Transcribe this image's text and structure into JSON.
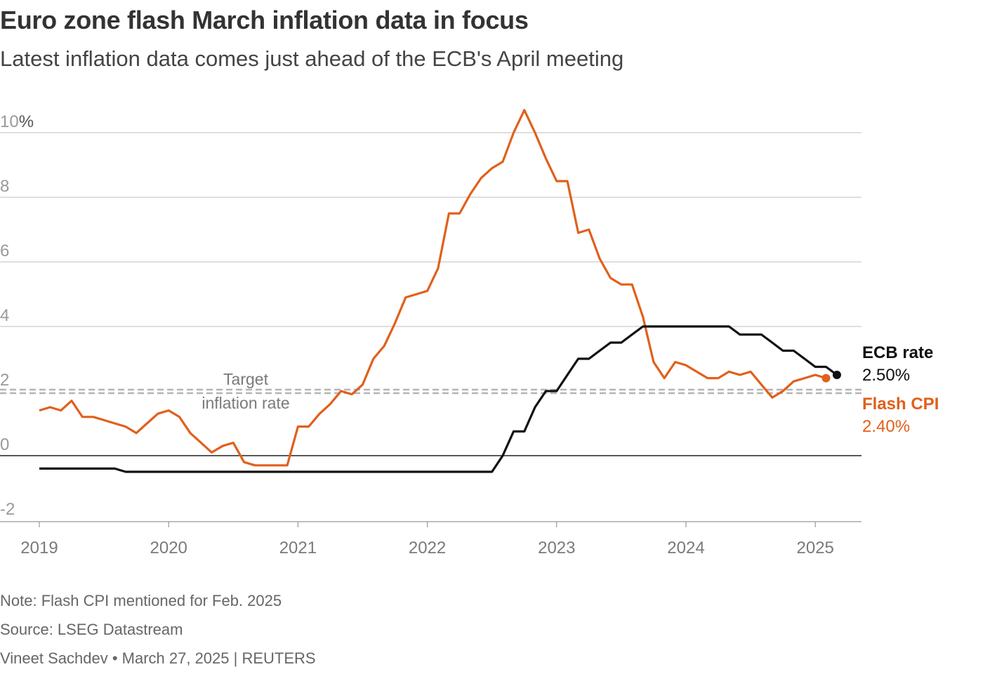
{
  "header": {
    "title": "Euro zone flash March inflation data in focus",
    "subtitle": "Latest inflation data comes just ahead of the ECB's April meeting"
  },
  "footer": {
    "note": "Note: Flash CPI mentioned for Feb. 2025",
    "source": "Source: LSEG Datastream",
    "credit": "Vineet Sachdev • March 27, 2025 | REUTERS"
  },
  "colors": {
    "cpi": "#e0601c",
    "ecb": "#111111",
    "grid": "#cccccc",
    "target": "#b5b5b5"
  },
  "chart_data": {
    "type": "line",
    "title": "Euro zone flash March inflation data in focus",
    "ylabel": "%",
    "ylim": [
      -2,
      10
    ],
    "yticks": [
      {
        "value": 10,
        "label": "10"
      },
      {
        "value": 8,
        "label": "8"
      },
      {
        "value": 6,
        "label": "6"
      },
      {
        "value": 4,
        "label": "4"
      },
      {
        "value": 2,
        "label": "2"
      },
      {
        "value": 0,
        "label": "0"
      },
      {
        "value": -2,
        "label": "-2"
      }
    ],
    "y_unit_label": "%",
    "xlim": [
      2019.0,
      2025.35
    ],
    "xticks": [
      {
        "value": 2019,
        "label": "2019"
      },
      {
        "value": 2020,
        "label": "2020"
      },
      {
        "value": 2021,
        "label": "2021"
      },
      {
        "value": 2022,
        "label": "2022"
      },
      {
        "value": 2023,
        "label": "2023"
      },
      {
        "value": 2024,
        "label": "2024"
      },
      {
        "value": 2025,
        "label": "2025"
      }
    ],
    "target": {
      "value": 2,
      "label_line1": "Target",
      "label_line2": "inflation rate"
    },
    "series": [
      {
        "name": "Flash CPI",
        "end_label": "Flash CPI",
        "end_value": "2.40%",
        "color": "#e0601c",
        "points": [
          [
            2019.0,
            1.4
          ],
          [
            2019.083,
            1.5
          ],
          [
            2019.167,
            1.4
          ],
          [
            2019.25,
            1.7
          ],
          [
            2019.333,
            1.2
          ],
          [
            2019.417,
            1.2
          ],
          [
            2019.5,
            1.1
          ],
          [
            2019.583,
            1.0
          ],
          [
            2019.667,
            0.9
          ],
          [
            2019.75,
            0.7
          ],
          [
            2019.833,
            1.0
          ],
          [
            2019.917,
            1.3
          ],
          [
            2020.0,
            1.4
          ],
          [
            2020.083,
            1.2
          ],
          [
            2020.167,
            0.7
          ],
          [
            2020.25,
            0.4
          ],
          [
            2020.333,
            0.1
          ],
          [
            2020.417,
            0.3
          ],
          [
            2020.5,
            0.4
          ],
          [
            2020.583,
            -0.2
          ],
          [
            2020.667,
            -0.3
          ],
          [
            2020.75,
            -0.3
          ],
          [
            2020.833,
            -0.3
          ],
          [
            2020.917,
            -0.3
          ],
          [
            2021.0,
            0.9
          ],
          [
            2021.083,
            0.9
          ],
          [
            2021.167,
            1.3
          ],
          [
            2021.25,
            1.6
          ],
          [
            2021.333,
            2.0
          ],
          [
            2021.417,
            1.9
          ],
          [
            2021.5,
            2.2
          ],
          [
            2021.583,
            3.0
          ],
          [
            2021.667,
            3.4
          ],
          [
            2021.75,
            4.1
          ],
          [
            2021.833,
            4.9
          ],
          [
            2021.917,
            5.0
          ],
          [
            2022.0,
            5.1
          ],
          [
            2022.083,
            5.8
          ],
          [
            2022.167,
            7.5
          ],
          [
            2022.25,
            7.5
          ],
          [
            2022.333,
            8.1
          ],
          [
            2022.417,
            8.6
          ],
          [
            2022.5,
            8.9
          ],
          [
            2022.583,
            9.1
          ],
          [
            2022.667,
            10.0
          ],
          [
            2022.75,
            10.7
          ],
          [
            2022.833,
            10.0
          ],
          [
            2022.917,
            9.2
          ],
          [
            2023.0,
            8.5
          ],
          [
            2023.083,
            8.5
          ],
          [
            2023.167,
            6.9
          ],
          [
            2023.25,
            7.0
          ],
          [
            2023.333,
            6.1
          ],
          [
            2023.417,
            5.5
          ],
          [
            2023.5,
            5.3
          ],
          [
            2023.583,
            5.3
          ],
          [
            2023.667,
            4.3
          ],
          [
            2023.75,
            2.9
          ],
          [
            2023.833,
            2.4
          ],
          [
            2023.917,
            2.9
          ],
          [
            2024.0,
            2.8
          ],
          [
            2024.083,
            2.6
          ],
          [
            2024.167,
            2.4
          ],
          [
            2024.25,
            2.4
          ],
          [
            2024.333,
            2.6
          ],
          [
            2024.417,
            2.5
          ],
          [
            2024.5,
            2.6
          ],
          [
            2024.583,
            2.2
          ],
          [
            2024.667,
            1.8
          ],
          [
            2024.75,
            2.0
          ],
          [
            2024.833,
            2.3
          ],
          [
            2024.917,
            2.4
          ],
          [
            2025.0,
            2.5
          ],
          [
            2025.083,
            2.4
          ]
        ]
      },
      {
        "name": "ECB rate",
        "end_label": "ECB rate",
        "end_value": "2.50%",
        "color": "#111111",
        "points": [
          [
            2019.0,
            -0.4
          ],
          [
            2019.583,
            -0.4
          ],
          [
            2019.667,
            -0.5
          ],
          [
            2022.5,
            -0.5
          ],
          [
            2022.583,
            0.0
          ],
          [
            2022.667,
            0.75
          ],
          [
            2022.75,
            0.75
          ],
          [
            2022.833,
            1.5
          ],
          [
            2022.917,
            2.0
          ],
          [
            2023.0,
            2.0
          ],
          [
            2023.083,
            2.5
          ],
          [
            2023.167,
            3.0
          ],
          [
            2023.25,
            3.0
          ],
          [
            2023.333,
            3.25
          ],
          [
            2023.417,
            3.5
          ],
          [
            2023.5,
            3.5
          ],
          [
            2023.583,
            3.75
          ],
          [
            2023.667,
            4.0
          ],
          [
            2024.333,
            4.0
          ],
          [
            2024.417,
            3.75
          ],
          [
            2024.583,
            3.75
          ],
          [
            2024.667,
            3.5
          ],
          [
            2024.75,
            3.25
          ],
          [
            2024.833,
            3.25
          ],
          [
            2024.917,
            3.0
          ],
          [
            2025.0,
            2.75
          ],
          [
            2025.083,
            2.75
          ],
          [
            2025.167,
            2.5
          ]
        ]
      }
    ]
  }
}
